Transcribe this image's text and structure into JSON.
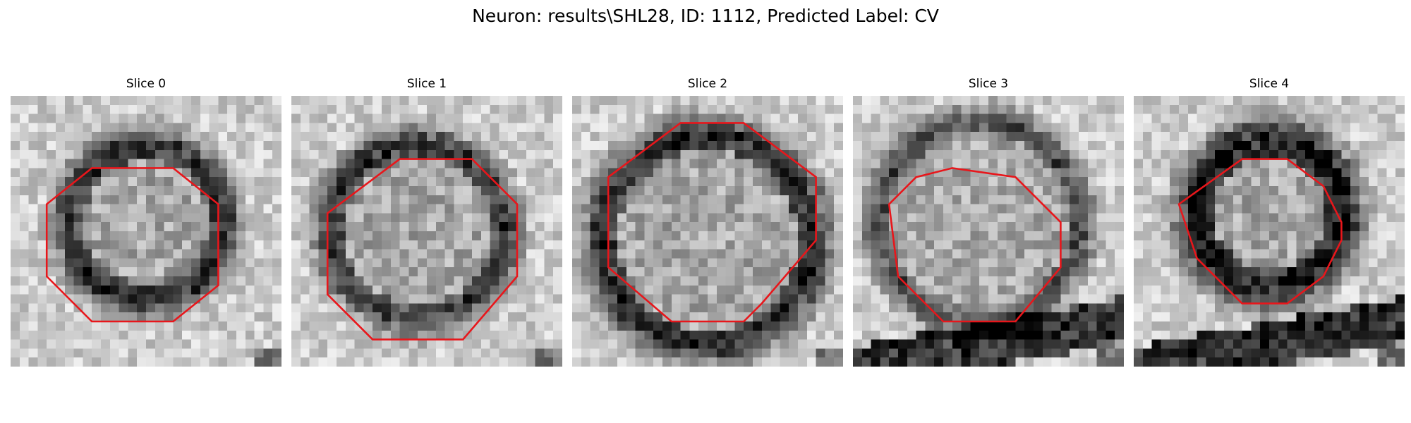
{
  "figure": {
    "title": "Neuron: results\\SHL28, ID: 1112, Predicted Label: CV"
  },
  "panels": [
    {
      "title": "Slice 0"
    },
    {
      "title": "Slice 1"
    },
    {
      "title": "Slice 2"
    },
    {
      "title": "Slice 3"
    },
    {
      "title": "Slice 4"
    }
  ],
  "colors": {
    "contour": "#e8161b",
    "background": "#ffffff"
  }
}
